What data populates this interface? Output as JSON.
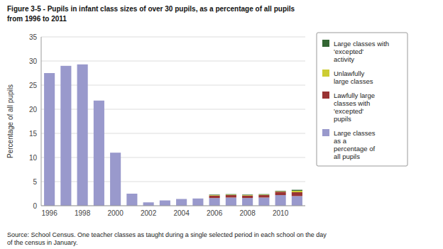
{
  "chart_data": {
    "type": "bar",
    "stacked": true,
    "title": "Figure 3-5 - Pupils in infant class sizes of over 30 pupils, as a percentage of all pupils",
    "subtitle": "from 1996 to 2011",
    "y_label": "Percentage of all pupils",
    "annotations": [
      "Source: School Census. One teacher classes as taught during a single selected period in each school on the day\nof the census in January."
    ],
    "categories": [
      "1996",
      null,
      "1998",
      null,
      "2000",
      null,
      "2002",
      null,
      "2004",
      null,
      "2006",
      null,
      "2008",
      null,
      "2010",
      null
    ],
    "series": [
      {
        "name": "Large classes\nas a\npercentage of\nall pupils",
        "color": "#9999cc",
        "values": [
          27.5,
          29.0,
          29.3,
          21.8,
          11.0,
          2.5,
          0.7,
          1.1,
          1.4,
          1.5,
          1.6,
          1.7,
          1.6,
          1.7,
          2.2,
          2.0
        ]
      },
      {
        "name": "Lawfully large\nclasses with\n'excepted'\npupils",
        "color": "#993333",
        "values": [
          0,
          0,
          0,
          0,
          0,
          0,
          0,
          0,
          0,
          0,
          0.5,
          0.5,
          0.5,
          0.5,
          0.7,
          0.8
        ]
      },
      {
        "name": "Unlawfully\nlarge classes",
        "color": "#cccc33",
        "values": [
          0,
          0,
          0,
          0,
          0,
          0,
          0,
          0,
          0,
          0,
          0.1,
          0.1,
          0.1,
          0.1,
          0.1,
          0.3
        ]
      },
      {
        "name": "Large classes with\n'excepted'\nactivity",
        "color": "#336633",
        "values": [
          0,
          0,
          0,
          0,
          0,
          0,
          0,
          0,
          0,
          0,
          0.1,
          0.1,
          0.1,
          0.1,
          0.1,
          0.2
        ]
      }
    ],
    "ylim": [
      0,
      35
    ],
    "yticks": [
      0,
      5,
      10,
      15,
      20,
      25,
      30,
      35
    ],
    "grid": true,
    "legend": "right"
  }
}
